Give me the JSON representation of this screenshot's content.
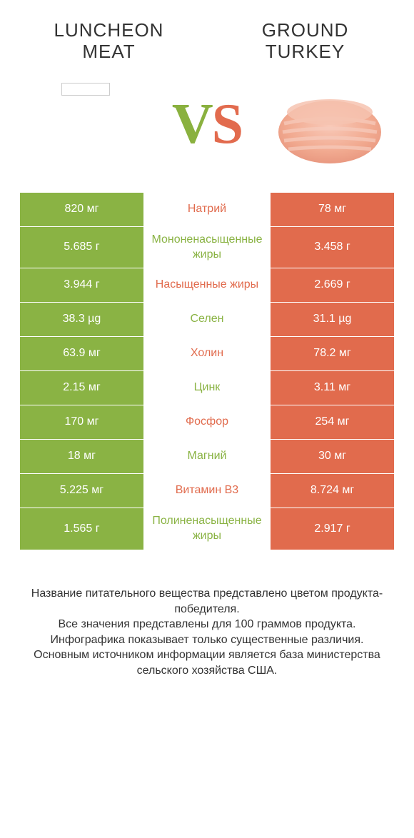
{
  "colors": {
    "green": "#8ab344",
    "orange": "#e16b4d",
    "background": "#ffffff",
    "text": "#333333"
  },
  "header": {
    "left_title": "LUNCHEON MEAT",
    "right_title": "GROUND TURKEY",
    "vs_v": "V",
    "vs_s": "S"
  },
  "vs_style": {
    "fontsize": 80,
    "left_color": "#8ab344",
    "right_color": "#e16b4d"
  },
  "table": {
    "left_bg": "#8ab344",
    "right_bg": "#e16b4d",
    "mid_bg": "#ffffff",
    "rows": [
      {
        "left": "820 мг",
        "mid": "Натрий",
        "right": "78 мг",
        "mid_color": "orange"
      },
      {
        "left": "5.685 г",
        "mid": "Мононенасыщенные жиры",
        "right": "3.458 г",
        "mid_color": "green"
      },
      {
        "left": "3.944 г",
        "mid": "Насыщенные жиры",
        "right": "2.669 г",
        "mid_color": "orange"
      },
      {
        "left": "38.3 µg",
        "mid": "Селен",
        "right": "31.1 µg",
        "mid_color": "green"
      },
      {
        "left": "63.9 мг",
        "mid": "Холин",
        "right": "78.2 мг",
        "mid_color": "orange"
      },
      {
        "left": "2.15 мг",
        "mid": "Цинк",
        "right": "3.11 мг",
        "mid_color": "green"
      },
      {
        "left": "170 мг",
        "mid": "Фосфор",
        "right": "254 мг",
        "mid_color": "orange"
      },
      {
        "left": "18 мг",
        "mid": "Магний",
        "right": "30 мг",
        "mid_color": "green"
      },
      {
        "left": "5.225 мг",
        "mid": "Витамин B3",
        "right": "8.724 мг",
        "mid_color": "orange"
      },
      {
        "left": "1.565 г",
        "mid": "Полиненасыщенные жиры",
        "right": "2.917 г",
        "mid_color": "green"
      }
    ]
  },
  "footnotes": {
    "line1": "Название питательного вещества представлено цветом продукта-победителя.",
    "line2": "Все значения представлены для 100 граммов продукта.",
    "line3": "Инфографика показывает только существенные различия.",
    "line4": "Основным источником информации является база министерства сельского хозяйства США."
  }
}
